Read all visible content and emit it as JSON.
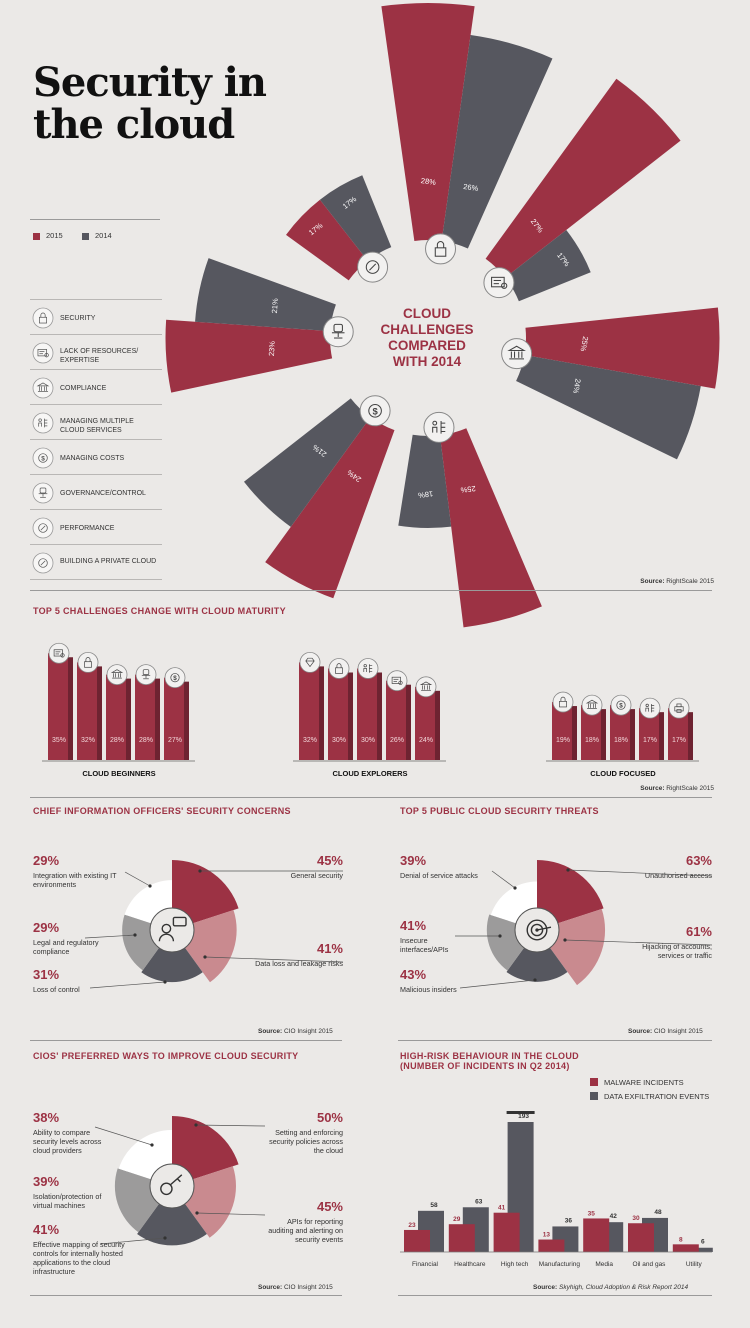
{
  "title_line1": "Security in",
  "title_line2": "the cloud",
  "legend": {
    "y2015": "2015",
    "y2014": "2014"
  },
  "colors": {
    "c2015": "#9c3244",
    "c2014": "#56575f",
    "light": "#c98a8f",
    "grey": "#9c9b9b",
    "white": "#ffffff"
  },
  "categories": [
    {
      "label": "SECURITY",
      "icon": "lock-icon"
    },
    {
      "label": "LACK OF RESOURCES/ EXPERTISE",
      "icon": "certificate-icon"
    },
    {
      "label": "COMPLIANCE",
      "icon": "bank-icon"
    },
    {
      "label": "MANAGING MULTIPLE CLOUD SERVICES",
      "icon": "network-icon"
    },
    {
      "label": "MANAGING COSTS",
      "icon": "dollar-icon"
    },
    {
      "label": "GOVERNANCE/CONTROL",
      "icon": "chair-icon"
    },
    {
      "label": "PERFORMANCE",
      "icon": "gauge-icon"
    },
    {
      "label": "BUILDING A PRIVATE CLOUD",
      "icon": "compass-icon"
    }
  ],
  "center_text": [
    "CLOUD",
    "CHALLENGES",
    "COMPARED",
    "WITH 2014"
  ],
  "source1": {
    "label": "Source:",
    "text": "RightScale 2015"
  },
  "maturity_title": "TOP 5 CHALLENGES CHANGE WITH CLOUD MATURITY",
  "source2": {
    "label": "Source:",
    "text": "RightScale 2015"
  },
  "cio_title": "CHIEF INFORMATION OFFICERS' SECURITY CONCERNS",
  "cio_items": [
    {
      "pct": "45%",
      "text": "General security"
    },
    {
      "pct": "41%",
      "text": "Data loss and leakage risks"
    },
    {
      "pct": "31%",
      "text": "Loss of control"
    },
    {
      "pct": "29%",
      "text": "Legal and regulatory compliance"
    },
    {
      "pct": "29%",
      "text": "Integration with existing IT environments"
    }
  ],
  "source3": {
    "label": "Source:",
    "text": "CIO Insight 2015"
  },
  "threats_title": "TOP 5 PUBLIC CLOUD SECURITY THREATS",
  "threat_items": [
    {
      "pct": "63%",
      "text": "Unauthorised access"
    },
    {
      "pct": "61%",
      "text": "Hijacking of accounts, services or traffic"
    },
    {
      "pct": "43%",
      "text": "Malicious insiders"
    },
    {
      "pct": "41%",
      "text": "Insecure interfaces/APIs"
    },
    {
      "pct": "39%",
      "text": "Denial of service attacks"
    }
  ],
  "source4": {
    "label": "Source:",
    "text": "CIO Insight 2015"
  },
  "pref_title": "CIOs' PREFERRED WAYS TO IMPROVE CLOUD SECURITY",
  "pref_items": [
    {
      "pct": "50%",
      "text": "Setting and enforcing security policies across the cloud"
    },
    {
      "pct": "45%",
      "text": "APIs for reporting auditing and alerting on security events"
    },
    {
      "pct": "41%",
      "text": "Effective mapping of security controls for internally hosted applications to the cloud infrastructure"
    },
    {
      "pct": "39%",
      "text": "Isolation/protection of virtual machines"
    },
    {
      "pct": "38%",
      "text": "Ability to compare security levels across cloud providers"
    }
  ],
  "source5": {
    "label": "Source:",
    "text": "CIO Insight 2015"
  },
  "risk_title": "HIGH-RISK BEHAVIOUR IN THE CLOUD",
  "risk_subtitle": "(NUMBER OF INCIDENTS IN Q2 2014)",
  "risk_legend": {
    "malware": "MALWARE INCIDENTS",
    "exfil": "DATA EXFILTRATION EVENTS"
  },
  "source6": {
    "label": "Source:",
    "text": "Skyhigh, Cloud Adoption & Risk Report 2014"
  },
  "chart_data": [
    {
      "type": "bar",
      "title": "CLOUD CHALLENGES COMPARED WITH 2014",
      "categories": [
        "Security",
        "Lack of resources/expertise",
        "Compliance",
        "Managing multiple cloud services",
        "Managing costs",
        "Governance/control",
        "Performance",
        "Building a private cloud"
      ],
      "series": [
        {
          "name": "2015",
          "values": [
            28,
            27,
            25,
            25,
            24,
            23,
            17,
            null
          ]
        },
        {
          "name": "2014",
          "values": [
            26,
            17,
            24,
            18,
            21,
            21,
            null,
            17
          ]
        }
      ]
    },
    {
      "type": "bar",
      "title": "TOP 5 CHALLENGES CHANGE WITH CLOUD MATURITY",
      "groups": [
        {
          "name": "CLOUD BEGINNERS",
          "icons": [
            "certificate-icon",
            "lock-icon",
            "bank-icon",
            "chair-icon",
            "dollar-icon"
          ],
          "labels": [
            "35%",
            "32%",
            "28%",
            "28%",
            "27%"
          ],
          "values": [
            35,
            32,
            28,
            28,
            27
          ]
        },
        {
          "name": "CLOUD EXPLORERS",
          "icons": [
            "diamond-icon",
            "lock-icon",
            "network-icon",
            "certificate-icon",
            "bank-icon"
          ],
          "labels": [
            "32%",
            "30%",
            "30%",
            "26%",
            "24%"
          ],
          "values": [
            32,
            30,
            30,
            26,
            24
          ]
        },
        {
          "name": "CLOUD FOCUSED",
          "icons": [
            "lock-icon",
            "bank-icon",
            "dollar-icon",
            "network-icon",
            "printer-icon"
          ],
          "labels": [
            "19%",
            "18%",
            "18%",
            "17%",
            "17%"
          ],
          "values": [
            19,
            18,
            18,
            17,
            17
          ]
        }
      ]
    },
    {
      "type": "pie",
      "title": "CHIEF INFORMATION OFFICERS' SECURITY CONCERNS",
      "labels": [
        "General security",
        "Data loss and leakage risks",
        "Loss of control",
        "Legal and regulatory compliance",
        "Integration with existing IT environments"
      ],
      "values": [
        45,
        41,
        31,
        29,
        29
      ]
    },
    {
      "type": "pie",
      "title": "TOP 5 PUBLIC CLOUD SECURITY THREATS",
      "labels": [
        "Unauthorised access",
        "Hijacking of accounts, services or traffic",
        "Malicious insiders",
        "Insecure interfaces/APIs",
        "Denial of service attacks"
      ],
      "values": [
        63,
        61,
        43,
        41,
        39
      ]
    },
    {
      "type": "pie",
      "title": "CIOs' PREFERRED WAYS TO IMPROVE CLOUD SECURITY",
      "labels": [
        "Setting and enforcing security policies across the cloud",
        "APIs for reporting auditing and alerting on security events",
        "Effective mapping of security controls for internally hosted applications to the cloud infrastructure",
        "Isolation/protection of virtual machines",
        "Ability to compare security levels across cloud providers"
      ],
      "values": [
        50,
        45,
        41,
        39,
        38
      ]
    },
    {
      "type": "bar",
      "title": "HIGH-RISK BEHAVIOUR IN THE CLOUD",
      "subtitle": "(NUMBER OF INCIDENTS IN Q2 2014)",
      "categories": [
        "Financial",
        "Healthcare",
        "High tech",
        "Manufacturing",
        "Media",
        "Oil and gas",
        "Utility"
      ],
      "series": [
        {
          "name": "MALWARE INCIDENTS",
          "values": [
            23,
            29,
            41,
            13,
            35,
            30,
            8
          ]
        },
        {
          "name": "DATA EXFILTRATION EVENTS",
          "values": [
            58,
            63,
            193,
            36,
            42,
            48,
            6
          ]
        }
      ]
    }
  ]
}
